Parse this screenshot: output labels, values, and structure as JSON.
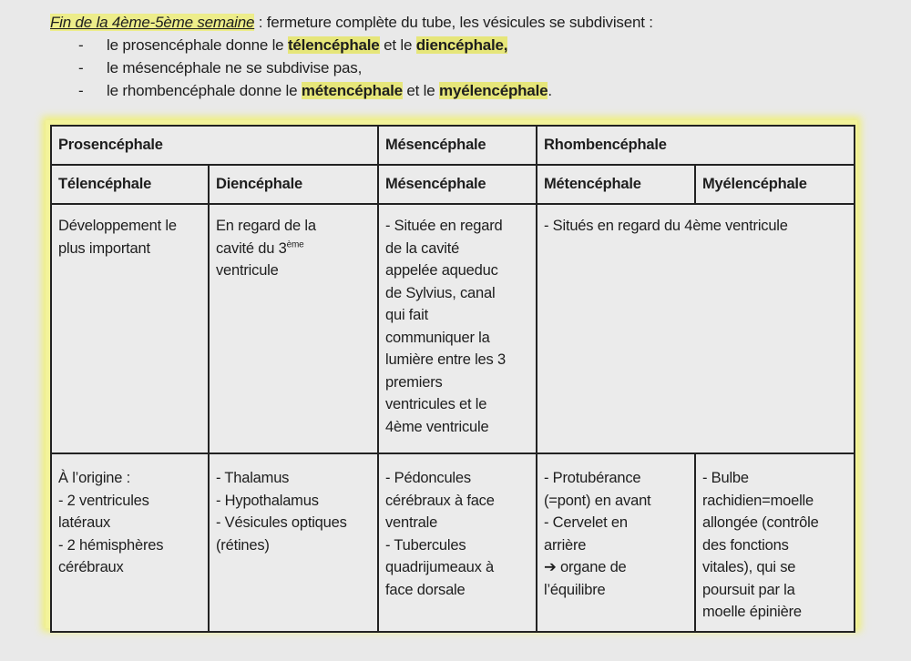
{
  "intro": {
    "title": "Fin de la 4ème-5ème semaine",
    "rest": " : fermeture complète du tube, les vésicules se subdivisent :",
    "bullets": [
      [
        {
          "t": "le prosencéphale donne le "
        },
        {
          "t": "télencéphale",
          "hl": true
        },
        {
          "t": " et le "
        },
        {
          "t": "diencéphale,",
          "hl": true
        }
      ],
      [
        {
          "t": "le mésencéphale ne se subdivise pas,"
        }
      ],
      [
        {
          "t": "le rhombencéphale donne le "
        },
        {
          "t": "métencéphale",
          "hl": true
        },
        {
          "t": " et le "
        },
        {
          "t": "myélencéphale",
          "hl": true
        },
        {
          "t": "."
        }
      ]
    ]
  },
  "highlight_color": "#e6e67a",
  "table": {
    "header1": [
      {
        "label": "Prosencéphale",
        "span": 2
      },
      {
        "label": "Mésencéphale",
        "span": 1
      },
      {
        "label": "Rhombencéphale",
        "span": 2
      }
    ],
    "header2": [
      "Télencéphale",
      "Diencéphale",
      "Mésencéphale",
      "Métencéphale",
      "Myélencéphale"
    ],
    "row1": [
      {
        "span": 1,
        "lines": [
          "Développement le",
          "plus important"
        ]
      },
      {
        "span": 1,
        "lines": [
          "En regard de la",
          {
            "text": "cavité du 3",
            "sup": "ème"
          },
          "ventricule"
        ]
      },
      {
        "span": 1,
        "lines": [
          "- Située en regard",
          "de la cavité",
          "appelée aqueduc",
          "de Sylvius, canal",
          "qui fait",
          "communiquer la",
          "lumière entre les 3",
          "premiers",
          "ventricules et le",
          "4ème ventricule"
        ]
      },
      {
        "span": 2,
        "lines": [
          "- Situés en regard du 4ème ventricule"
        ]
      }
    ],
    "row2": [
      {
        "span": 1,
        "lines": [
          "À l’origine :",
          "- 2 ventricules",
          "latéraux",
          "- 2 hémisphères",
          "cérébraux"
        ]
      },
      {
        "span": 1,
        "lines": [
          "- Thalamus",
          "- Hypothalamus",
          "- Vésicules optiques",
          "(rétines)"
        ]
      },
      {
        "span": 1,
        "lines": [
          "- Pédoncules",
          "cérébraux à face",
          "ventrale",
          "- Tubercules",
          "quadrijumeaux à",
          "face dorsale"
        ]
      },
      {
        "span": 1,
        "lines": [
          "- Protubérance",
          "(=pont) en avant",
          "- Cervelet en",
          "arrière",
          "➔ organe de",
          "l’équilibre"
        ]
      },
      {
        "span": 1,
        "lines": [
          "- Bulbe",
          "rachidien=moelle",
          "allongée (contrôle",
          "des fonctions",
          "vitales), qui se",
          "poursuit par la",
          "moelle épinière"
        ]
      }
    ]
  }
}
